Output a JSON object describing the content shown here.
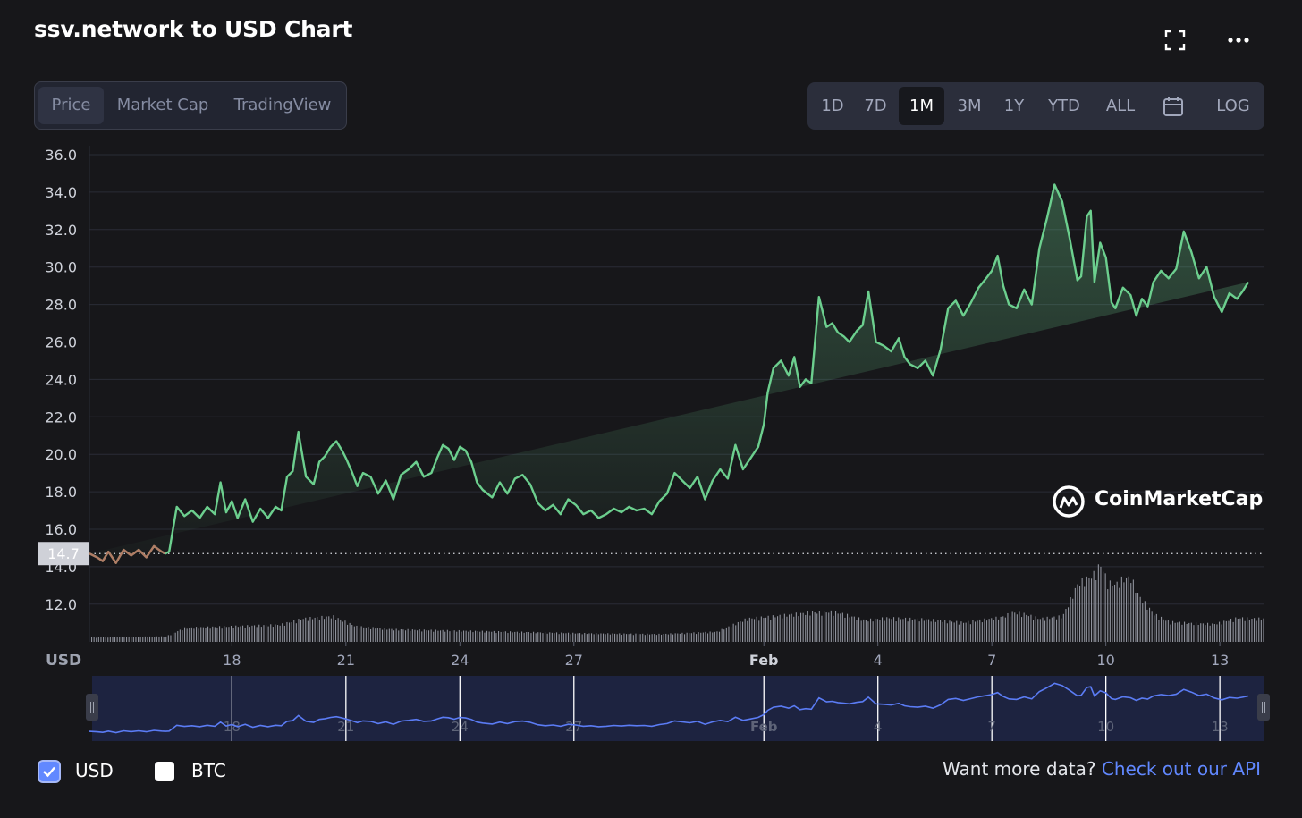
{
  "title": "ssv.network to USD Chart",
  "header_icons": [
    "fullscreen-icon",
    "more-options-icon"
  ],
  "tabs": [
    {
      "label": "Price",
      "active": true
    },
    {
      "label": "Market Cap",
      "active": false
    },
    {
      "label": "TradingView",
      "active": false
    }
  ],
  "ranges": [
    {
      "label": "1D",
      "active": false
    },
    {
      "label": "7D",
      "active": false
    },
    {
      "label": "1M",
      "active": true
    },
    {
      "label": "3M",
      "active": false
    },
    {
      "label": "1Y",
      "active": false
    },
    {
      "label": "YTD",
      "active": false
    },
    {
      "label": "ALL",
      "active": false
    },
    {
      "label": "",
      "icon": "calendar-icon",
      "active": false
    },
    {
      "label": "LOG",
      "active": false
    }
  ],
  "currency": {
    "usd_label": "USD",
    "usd_checked": true,
    "btc_label": "BTC",
    "btc_checked": false
  },
  "footer": {
    "prompt": "Want more data?",
    "link": "Check out our API"
  },
  "watermark": "CoinMarketCap",
  "colors": {
    "up": "#6ccf8e",
    "down": "#ea3943",
    "volume": "#8f929c",
    "navigator_line": "#5b7cf5",
    "link": "#6188ff",
    "background": "#17171a"
  },
  "chart_data": {
    "type": "line",
    "title": "ssv.network to USD Chart",
    "ylabel": "USD",
    "ylim": [
      10.5,
      36.5
    ],
    "yticks": [
      "36.0",
      "34.0",
      "32.0",
      "30.0",
      "28.0",
      "26.0",
      "24.0",
      "22.0",
      "20.0",
      "18.0",
      "16.0",
      "14.0",
      "12.0"
    ],
    "xticks": [
      {
        "label": "18",
        "day": 3.75
      },
      {
        "label": "21",
        "day": 6.75
      },
      {
        "label": "24",
        "day": 9.75
      },
      {
        "label": "27",
        "day": 12.75
      },
      {
        "label": "Feb",
        "day": 17.75
      },
      {
        "label": "4",
        "day": 20.75
      },
      {
        "label": "7",
        "day": 23.75
      },
      {
        "label": "10",
        "day": 26.75
      },
      {
        "label": "13",
        "day": 29.75
      }
    ],
    "baseline": 14.7,
    "baseline_label": "14.7",
    "series": [
      {
        "name": "Price",
        "day": [
          0,
          0.2,
          0.35,
          0.5,
          0.7,
          0.9,
          1.1,
          1.3,
          1.5,
          1.7,
          1.9,
          2.0,
          2.1,
          2.3,
          2.5,
          2.7,
          2.9,
          3.1,
          3.3,
          3.45,
          3.6,
          3.75,
          3.9,
          4.1,
          4.3,
          4.5,
          4.7,
          4.9,
          5.05,
          5.2,
          5.35,
          5.5,
          5.7,
          5.9,
          6.05,
          6.2,
          6.35,
          6.5,
          6.65,
          6.75,
          6.9,
          7.05,
          7.2,
          7.4,
          7.6,
          7.8,
          8.0,
          8.2,
          8.4,
          8.6,
          8.8,
          9.0,
          9.15,
          9.3,
          9.45,
          9.6,
          9.75,
          9.9,
          10.05,
          10.2,
          10.35,
          10.6,
          10.8,
          11.0,
          11.2,
          11.4,
          11.6,
          11.8,
          12.0,
          12.2,
          12.4,
          12.6,
          12.8,
          13.0,
          13.2,
          13.4,
          13.6,
          13.8,
          14.0,
          14.2,
          14.4,
          14.6,
          14.8,
          15.0,
          15.2,
          15.4,
          15.6,
          15.8,
          16.0,
          16.2,
          16.4,
          16.6,
          16.8,
          17.0,
          17.2,
          17.4,
          17.6,
          17.75,
          17.85,
          18.0,
          18.2,
          18.4,
          18.55,
          18.7,
          18.85,
          19.0,
          19.2,
          19.4,
          19.55,
          19.7,
          19.85,
          20.0,
          20.2,
          20.35,
          20.5,
          20.7,
          20.9,
          21.1,
          21.3,
          21.45,
          21.6,
          21.8,
          22.0,
          22.2,
          22.4,
          22.6,
          22.8,
          23.0,
          23.2,
          23.4,
          23.6,
          23.75,
          23.9,
          24.05,
          24.2,
          24.4,
          24.6,
          24.8,
          25.0,
          25.2,
          25.4,
          25.6,
          25.8,
          26.0,
          26.1,
          26.25,
          26.35,
          26.45,
          26.6,
          26.75,
          26.9,
          27.0,
          27.2,
          27.4,
          27.55,
          27.7,
          27.85,
          28.0,
          28.2,
          28.4,
          28.6,
          28.8,
          29.0,
          29.2,
          29.4,
          29.6,
          29.8,
          30.0,
          30.2,
          30.35,
          30.5,
          30.7,
          30.9
        ],
        "price": [
          14.7,
          14.5,
          14.3,
          14.8,
          14.2,
          14.9,
          14.6,
          14.9,
          14.5,
          15.1,
          14.8,
          14.7,
          14.8,
          17.2,
          16.7,
          17.0,
          16.6,
          17.2,
          16.8,
          18.5,
          16.9,
          17.5,
          16.6,
          17.6,
          16.4,
          17.1,
          16.6,
          17.2,
          17.0,
          18.8,
          19.1,
          21.2,
          18.8,
          18.4,
          19.6,
          19.9,
          20.4,
          20.7,
          20.2,
          19.8,
          19.1,
          18.3,
          19.0,
          18.8,
          17.9,
          18.6,
          17.6,
          18.9,
          19.2,
          19.6,
          18.8,
          19.0,
          19.8,
          20.5,
          20.3,
          19.7,
          20.4,
          20.2,
          19.6,
          18.5,
          18.1,
          17.7,
          18.5,
          17.9,
          18.7,
          18.9,
          18.4,
          17.4,
          17.0,
          17.3,
          16.8,
          17.6,
          17.3,
          16.8,
          17.0,
          16.6,
          16.8,
          17.1,
          16.9,
          17.2,
          17.0,
          17.1,
          16.8,
          17.5,
          17.9,
          19.0,
          18.6,
          18.2,
          18.8,
          17.6,
          18.6,
          19.2,
          18.7,
          20.5,
          19.2,
          19.8,
          20.4,
          21.6,
          23.3,
          24.6,
          25.0,
          24.2,
          25.2,
          23.6,
          24.0,
          23.8,
          28.4,
          26.8,
          27.0,
          26.5,
          26.3,
          26.0,
          26.6,
          26.9,
          28.7,
          26.0,
          25.8,
          25.5,
          26.2,
          25.2,
          24.8,
          24.6,
          25.0,
          24.2,
          25.6,
          27.8,
          28.2,
          27.4,
          28.1,
          28.9,
          29.4,
          29.8,
          30.6,
          29.0,
          28.0,
          27.8,
          28.8,
          28.0,
          31.0,
          32.6,
          34.4,
          33.5,
          31.5,
          29.3,
          29.5,
          32.7,
          33.0,
          29.2,
          31.3,
          30.5,
          28.1,
          27.8,
          28.9,
          28.5,
          27.4,
          28.3,
          27.9,
          29.2,
          29.8,
          29.4,
          29.9,
          31.9,
          30.8,
          29.4,
          30.0,
          28.4,
          27.6,
          28.6,
          28.3,
          28.7,
          29.2
        ]
      },
      {
        "name": "Volume",
        "day": [
          0,
          2.0,
          2.5,
          5.0,
          5.6,
          6.4,
          7.0,
          8.0,
          9.0,
          10.0,
          11.0,
          13.0,
          15.0,
          16.5,
          17.3,
          18.0,
          19.0,
          19.6,
          20.4,
          21.0,
          22.0,
          23.0,
          24.0,
          24.3,
          24.6,
          25.0,
          25.6,
          26.0,
          26.4,
          26.6,
          26.8,
          27.0,
          27.2,
          27.4,
          27.6,
          28.0,
          28.4,
          29.0,
          29.6,
          30.2,
          30.6,
          30.9
        ],
        "volume": [
          0.6,
          0.7,
          1.8,
          2.2,
          3.0,
          3.3,
          2.0,
          1.6,
          1.5,
          1.4,
          1.3,
          1.1,
          1.0,
          1.3,
          3.0,
          3.3,
          3.8,
          3.9,
          2.8,
          3.1,
          2.9,
          2.5,
          3.2,
          3.8,
          3.6,
          3.0,
          3.3,
          7.5,
          8.6,
          10.0,
          7.6,
          7.4,
          8.2,
          8.3,
          6.0,
          3.6,
          2.6,
          2.4,
          2.3,
          3.1,
          3.0,
          3.0
        ]
      }
    ]
  }
}
